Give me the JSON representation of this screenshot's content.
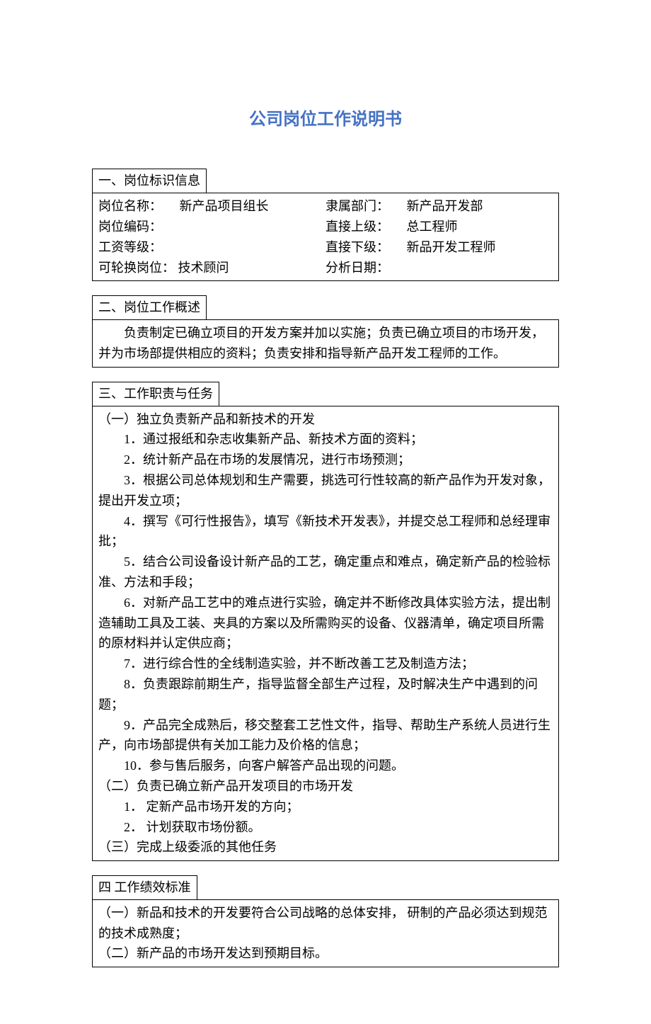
{
  "title": "公司岗位工作说明书",
  "section1": {
    "header": "一、岗位标识信息",
    "fields": {
      "position_name_label": "岗位名称：",
      "position_name_value": "新产品项目组长",
      "department_label": "隶属部门：",
      "department_value": "新产品开发部",
      "position_code_label": "岗位编码：",
      "position_code_value": "",
      "superior_label": "直接上级：",
      "superior_value": "总工程师",
      "salary_level_label": "工资等级：",
      "salary_level_value": "",
      "subordinate_label": "直接下级：",
      "subordinate_value": "新品开发工程师",
      "rotation_label": "可轮换岗位：",
      "rotation_value": "技术顾问",
      "analysis_date_label": "分析日期：",
      "analysis_date_value": ""
    }
  },
  "section2": {
    "header": "二、岗位工作概述",
    "content": "负责制定已确立项目的开发方案并加以实施；负责已确立项目的市场开发，并为市场部提供相应的资料；负责安排和指导新产品开发工程师的工作。"
  },
  "section3": {
    "header": "三、工作职责与任务",
    "sub1_title": "（一）独立负责新产品和新技术的开发",
    "sub1_items": {
      "i1": "1．通过报纸和杂志收集新产品、新技术方面的资料；",
      "i2": "2．统计新产品在市场的发展情况，进行市场预测；",
      "i3": "3．根据公司总体规划和生产需要，挑选可行性较高的新产品作为开发对象，提出开发立项；",
      "i4": "4．撰写《可行性报告》，填写《新技术开发表》，并提交总工程师和总经理审批；",
      "i5": "5．结合公司设备设计新产品的工艺，确定重点和难点，确定新产品的检验标准、方法和手段；",
      "i6": "6．对新产品工艺中的难点进行实验，确定并不断修改具体实验方法，提出制造辅助工具及工装、夹具的方案以及所需购买的设备、仪器清单，确定项目所需的原材料并认定供应商；",
      "i7": "7．进行综合性的全线制造实验，并不断改善工艺及制造方法；",
      "i8": "8．负责跟踪前期生产，指导监督全部生产过程，及时解决生产中遇到的问题；",
      "i9": "9．产品完全成熟后，移交整套工艺性文件，指导、帮助生产系统人员进行生产，向市场部提供有关加工能力及价格的信息；",
      "i10": "10．参与售后服务，向客户解答产品出现的问题。"
    },
    "sub2_title": "（二）负责已确立新产品开发项目的市场开发",
    "sub2_items": {
      "i1": "1． 定新产品市场开发的方向；",
      "i2": "2． 计划获取市场份额。"
    },
    "sub3_title": "（三）完成上级委派的其他任务"
  },
  "section4": {
    "header": "四  工作绩效标准",
    "item1": "（一）新品和技术的开发要符合公司战略的总体安排，  研制的产品必须达到规范的技术成熟度；",
    "item2": "（二）新产品的市场开发达到预期目标。"
  },
  "colors": {
    "title_color": "#4472c4",
    "text_color": "#000000",
    "border_color": "#000000",
    "background_color": "#ffffff"
  },
  "typography": {
    "title_fontsize": 24,
    "body_fontsize": 18,
    "font_family": "SimSun"
  }
}
